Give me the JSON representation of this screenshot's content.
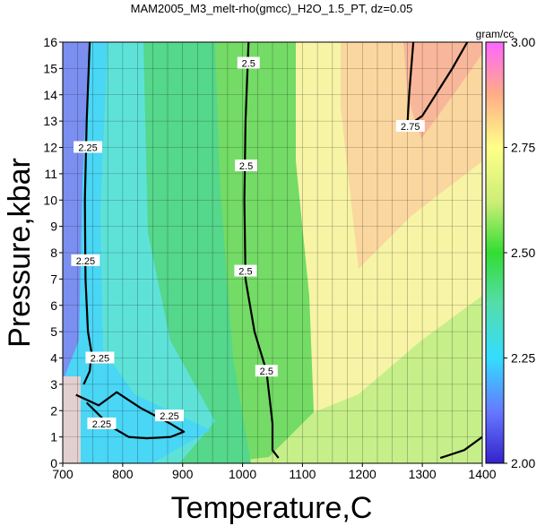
{
  "chart_data": {
    "type": "heatmap",
    "title": "MAM2005_M3_melt-rho(gmcc)_H2O_1.5_PT, dz=0.05",
    "xlabel": "Temperature,C",
    "ylabel": "Pressure,kbar",
    "xlim": [
      700,
      1400
    ],
    "ylim": [
      0,
      16
    ],
    "x_ticks": [
      "700",
      "800",
      "900",
      "1000",
      "1100",
      "1200",
      "1300",
      "1400"
    ],
    "y_ticks": [
      "0",
      "1",
      "2",
      "3",
      "4",
      "5",
      "6",
      "7",
      "8",
      "9",
      "10",
      "11",
      "12",
      "13",
      "14",
      "15",
      "16"
    ],
    "grid": true,
    "colorbar": {
      "unit": "gram/cc",
      "range": [
        2.0,
        3.0
      ],
      "tick_labels": [
        "2.00",
        "2.25",
        "2.50",
        "2.75",
        "3.00"
      ],
      "placement": "right"
    },
    "contour_interval": 0.05,
    "major_contours": [
      {
        "level": "2.25",
        "points": [
          [
            745,
            16
          ],
          [
            740,
            13
          ],
          [
            737,
            10
          ],
          [
            738,
            7
          ],
          [
            742,
            5
          ],
          [
            748,
            4.2
          ],
          [
            745,
            3.5
          ],
          [
            735,
            3
          ]
        ],
        "labels": [
          {
            "x": 742,
            "y": 12
          },
          {
            "x": 738,
            "y": 7.7
          },
          {
            "x": 762,
            "y": 4
          }
        ]
      },
      {
        "level": "2.25",
        "points": [
          [
            722,
            2.6
          ],
          [
            760,
            2.2
          ],
          [
            790,
            2.7
          ],
          [
            830,
            2.1
          ],
          [
            880,
            1.5
          ],
          [
            902,
            1.2
          ],
          [
            880,
            1.0
          ],
          [
            840,
            0.95
          ],
          [
            810,
            1.0
          ],
          [
            780,
            1.4
          ],
          [
            740,
            2.3
          ]
        ],
        "labels": [
          {
            "x": 765,
            "y": 1.5
          },
          {
            "x": 878,
            "y": 1.8
          }
        ]
      },
      {
        "level": "2.5",
        "points": [
          [
            1010,
            16
          ],
          [
            1005,
            13
          ],
          [
            1003,
            10
          ],
          [
            1005,
            7
          ],
          [
            1020,
            5
          ],
          [
            1040,
            3.5
          ],
          [
            1050,
            1.5
          ],
          [
            1050,
            0.5
          ],
          [
            1060,
            0.2
          ]
        ],
        "labels": [
          {
            "x": 1010,
            "y": 15.2
          },
          {
            "x": 1006,
            "y": 11.3
          },
          {
            "x": 1005,
            "y": 7.3
          },
          {
            "x": 1040,
            "y": 3.5
          }
        ]
      },
      {
        "level": "2.75",
        "points": [
          [
            1285,
            16
          ],
          [
            1278,
            14
          ],
          [
            1275,
            12.8
          ],
          [
            1300,
            13.2
          ],
          [
            1350,
            15
          ],
          [
            1375,
            16
          ]
        ],
        "labels": [
          {
            "x": 1280,
            "y": 12.8
          }
        ]
      },
      {
        "level": "2.75",
        "points": [
          [
            1330,
            0.2
          ],
          [
            1370,
            0.5
          ],
          [
            1400,
            1.0
          ]
        ],
        "labels": []
      }
    ],
    "colors": {
      "2.00": "#7755dd",
      "2.25": "#33ddff",
      "2.50": "#33dd33",
      "2.75": "#ffff77",
      "3.00": "#ffaaff"
    }
  }
}
